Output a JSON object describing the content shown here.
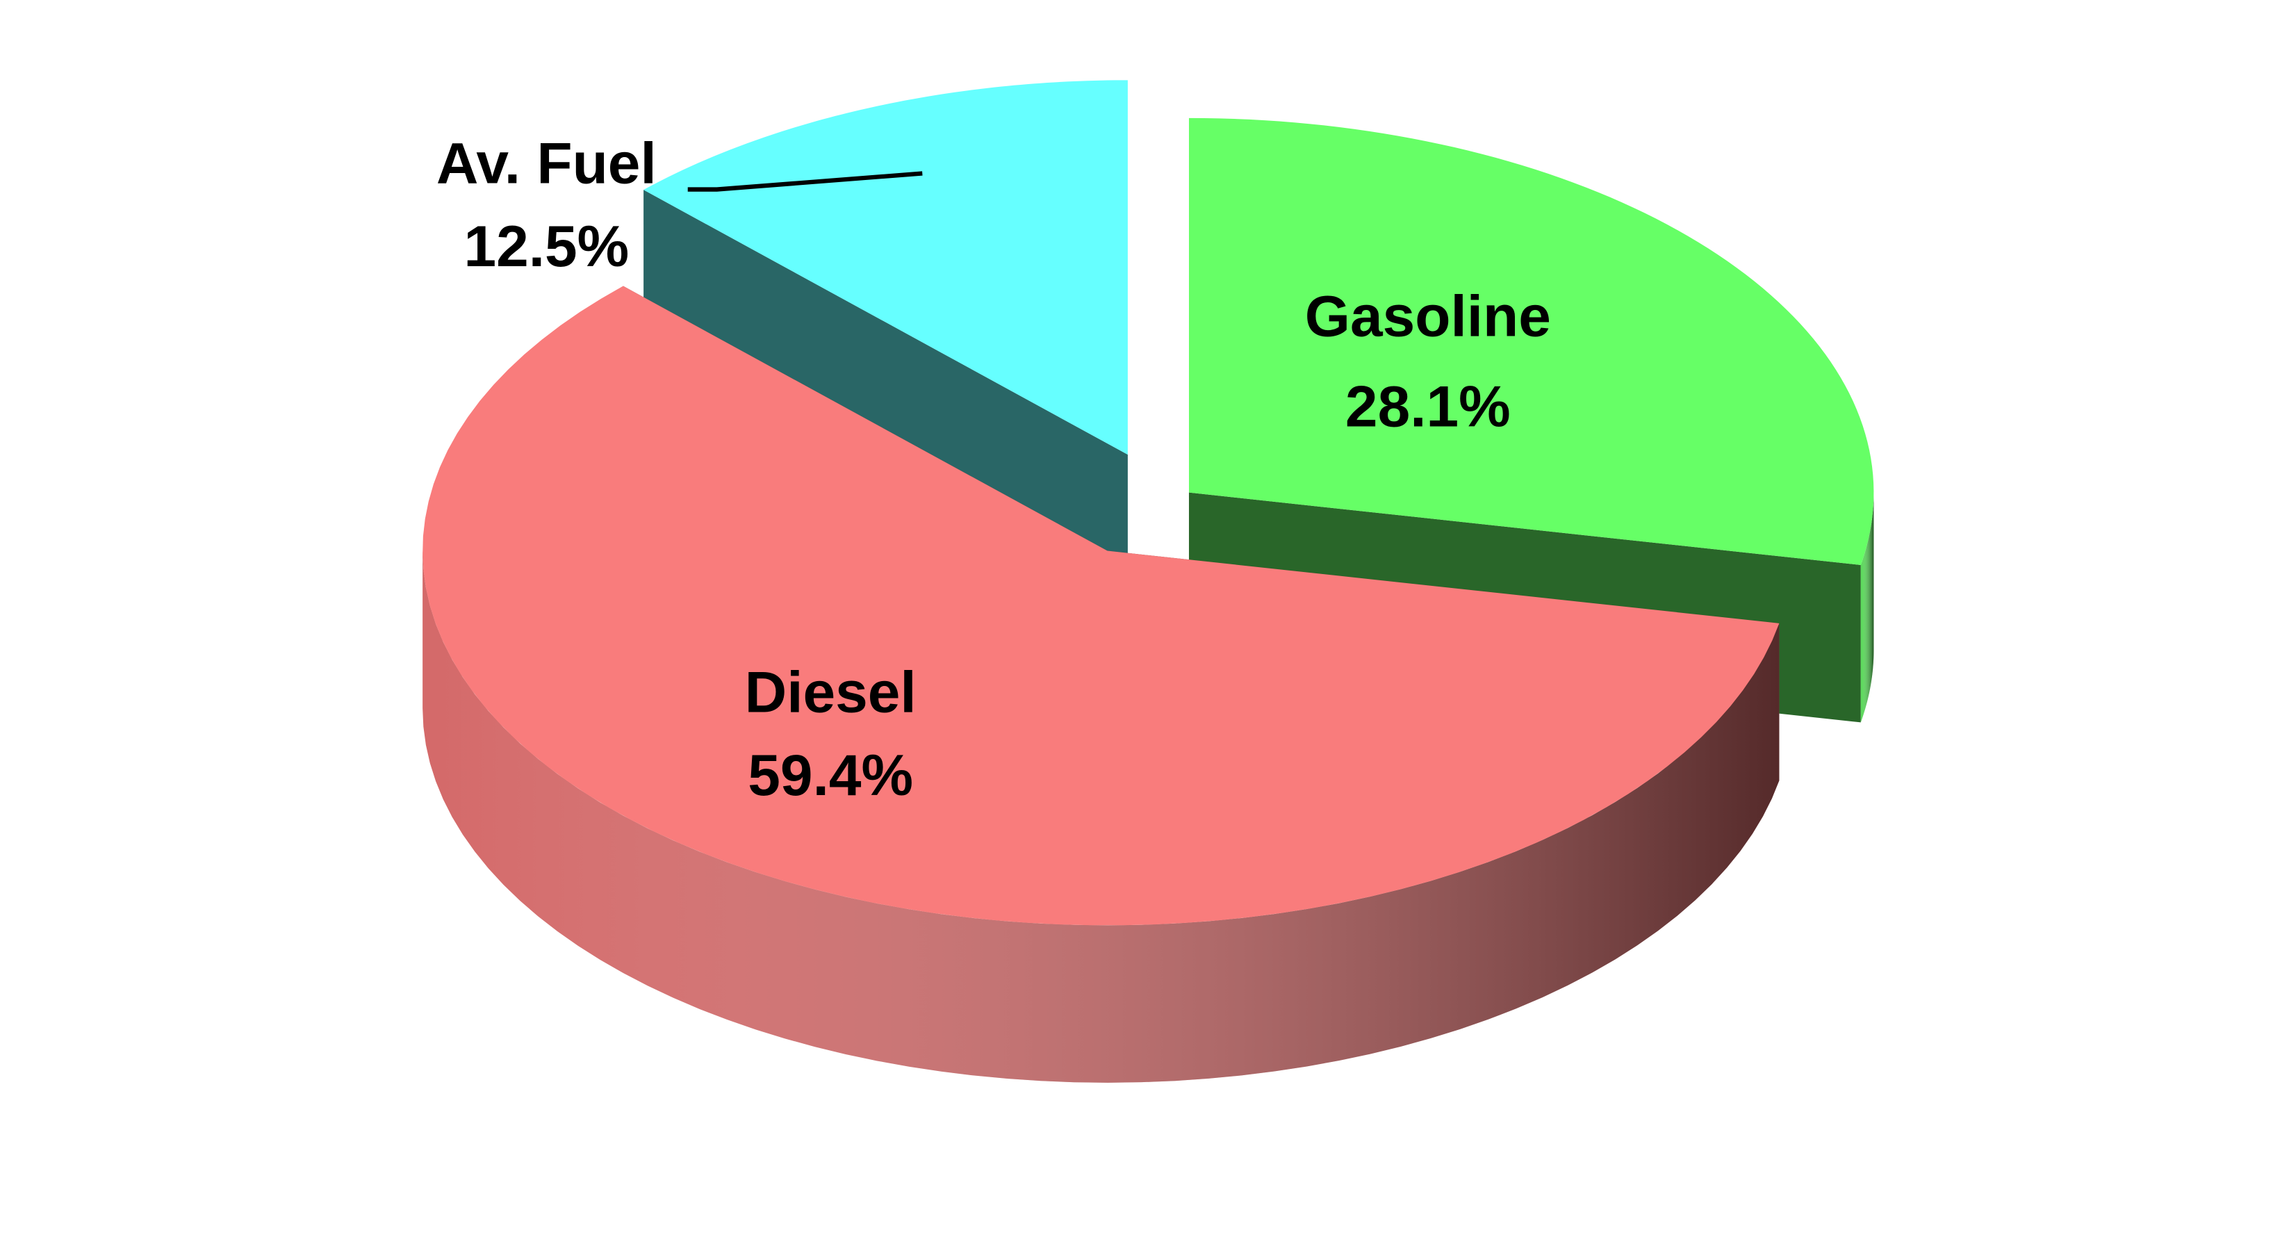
{
  "chart_data": {
    "type": "pie",
    "categories": [
      "Gasoline",
      "Diesel",
      "Av. Fuel"
    ],
    "values": [
      28.1,
      59.4,
      12.5
    ],
    "value_labels": [
      "28.1%",
      "59.4%",
      "12.5%"
    ],
    "colors": [
      "#66ff66",
      "#f97c7c",
      "#66ffff"
    ]
  }
}
